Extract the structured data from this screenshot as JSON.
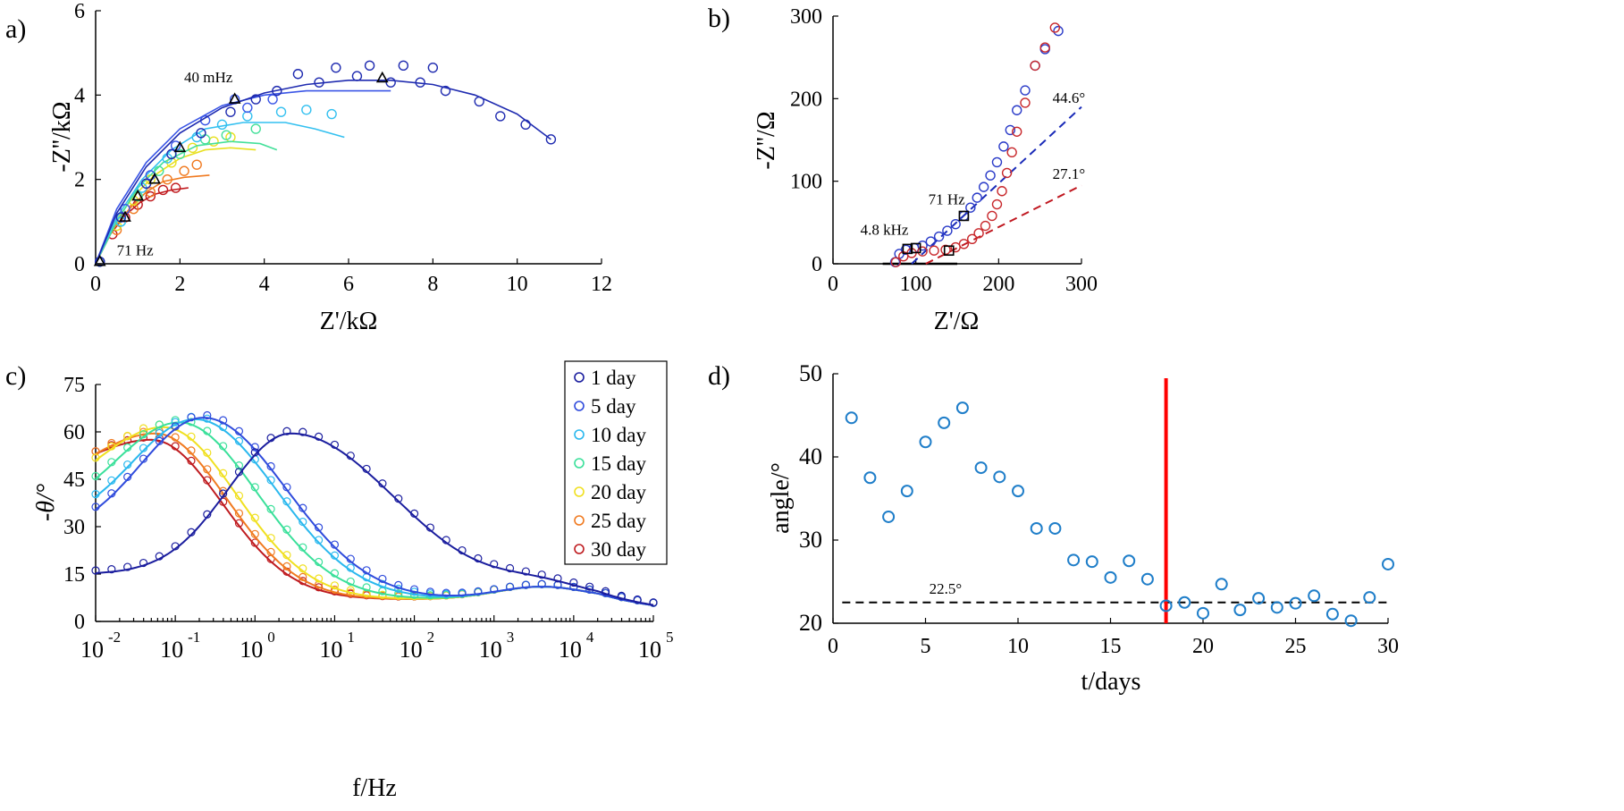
{
  "chart_data": [
    {
      "panel_label": "a)",
      "type": "scatter",
      "xlabel": "Z'/kΩ",
      "ylabel": "-Z''/kΩ",
      "xlim": [
        0,
        12
      ],
      "ylim": [
        0,
        6
      ],
      "xticks": [
        "0",
        "2",
        "4",
        "6",
        "8",
        "10",
        "12"
      ],
      "yticks": [
        "0",
        "2",
        "4",
        "6"
      ],
      "annotations": [
        {
          "text": "40 mHz",
          "x": 2.1,
          "y": 4.3
        },
        {
          "text": "71 Hz",
          "x": 0.5,
          "y": 0.2
        }
      ],
      "series": [
        {
          "color": "#1f2bb0",
          "points": [
            [
              0.1,
              0.05
            ],
            [
              0.6,
              1.1
            ],
            [
              1.2,
              1.9
            ],
            [
              1.8,
              2.6
            ],
            [
              2.5,
              3.1
            ],
            [
              3.2,
              3.6
            ],
            [
              3.8,
              3.9
            ],
            [
              4.3,
              4.1
            ],
            [
              4.8,
              4.5
            ],
            [
              5.3,
              4.3
            ],
            [
              5.7,
              4.65
            ],
            [
              6.2,
              4.45
            ],
            [
              6.5,
              4.7
            ],
            [
              7.0,
              4.3
            ],
            [
              7.3,
              4.7
            ],
            [
              7.7,
              4.3
            ],
            [
              8.0,
              4.65
            ],
            [
              8.3,
              4.1
            ],
            [
              9.1,
              3.85
            ],
            [
              9.6,
              3.5
            ],
            [
              10.2,
              3.3
            ],
            [
              10.8,
              2.95
            ]
          ],
          "fit": [
            [
              0,
              0
            ],
            [
              0.5,
              1.2
            ],
            [
              1.2,
              2.3
            ],
            [
              2.0,
              3.1
            ],
            [
              3.0,
              3.7
            ],
            [
              4.0,
              4.05
            ],
            [
              5.0,
              4.25
            ],
            [
              6.0,
              4.35
            ],
            [
              7.0,
              4.35
            ],
            [
              8.0,
              4.25
            ],
            [
              9.0,
              4.0
            ],
            [
              10.0,
              3.55
            ],
            [
              10.8,
              2.95
            ]
          ]
        },
        {
          "color": "#3a55e6",
          "points": [
            [
              0.1,
              0.05
            ],
            [
              0.7,
              1.3
            ],
            [
              1.3,
              2.1
            ],
            [
              1.9,
              2.8
            ],
            [
              2.6,
              3.4
            ],
            [
              3.3,
              3.9
            ],
            [
              3.6,
              3.7
            ],
            [
              4.2,
              3.9
            ]
          ],
          "fit": [
            [
              0,
              0
            ],
            [
              0.5,
              1.3
            ],
            [
              1.2,
              2.4
            ],
            [
              2.0,
              3.2
            ],
            [
              3.0,
              3.75
            ],
            [
              4.0,
              4.0
            ],
            [
              5.0,
              4.1
            ],
            [
              6.0,
              4.1
            ],
            [
              7.0,
              4.1
            ]
          ]
        },
        {
          "color": "#33c0f0",
          "points": [
            [
              0.1,
              0.05
            ],
            [
              0.6,
              1.0
            ],
            [
              1.1,
              1.8
            ],
            [
              1.7,
              2.5
            ],
            [
              2.4,
              3.0
            ],
            [
              3.0,
              3.3
            ],
            [
              3.6,
              3.5
            ],
            [
              4.4,
              3.6
            ],
            [
              5.0,
              3.65
            ],
            [
              5.6,
              3.55
            ]
          ],
          "fit": [
            [
              0,
              0
            ],
            [
              0.5,
              1.1
            ],
            [
              1.1,
              2.0
            ],
            [
              1.8,
              2.7
            ],
            [
              2.6,
              3.2
            ],
            [
              3.5,
              3.35
            ],
            [
              4.5,
              3.35
            ],
            [
              5.2,
              3.2
            ],
            [
              5.9,
              3.0
            ]
          ]
        },
        {
          "color": "#44e09a",
          "points": [
            [
              0.1,
              0.05
            ],
            [
              0.6,
              1.0
            ],
            [
              1.0,
              1.6
            ],
            [
              1.5,
              2.2
            ],
            [
              2.0,
              2.6
            ],
            [
              2.6,
              2.95
            ],
            [
              3.1,
              3.05
            ],
            [
              3.8,
              3.2
            ]
          ],
          "fit": [
            [
              0,
              0
            ],
            [
              0.5,
              1.0
            ],
            [
              1.0,
              1.8
            ],
            [
              1.6,
              2.4
            ],
            [
              2.4,
              2.8
            ],
            [
              3.2,
              2.9
            ],
            [
              3.9,
              2.85
            ],
            [
              4.3,
              2.7
            ]
          ]
        },
        {
          "color": "#e8e020",
          "points": [
            [
              0.1,
              0.05
            ],
            [
              0.5,
              0.9
            ],
            [
              0.9,
              1.5
            ],
            [
              1.3,
              2.0
            ],
            [
              1.8,
              2.4
            ],
            [
              2.3,
              2.75
            ],
            [
              2.8,
              2.9
            ],
            [
              3.2,
              3.0
            ]
          ],
          "fit": [
            [
              0,
              0
            ],
            [
              0.4,
              0.9
            ],
            [
              0.9,
              1.6
            ],
            [
              1.4,
              2.1
            ],
            [
              2.0,
              2.5
            ],
            [
              2.6,
              2.7
            ],
            [
              3.2,
              2.75
            ],
            [
              3.8,
              2.7
            ]
          ]
        },
        {
          "color": "#f07a20",
          "points": [
            [
              0.1,
              0.05
            ],
            [
              0.5,
              0.8
            ],
            [
              0.9,
              1.3
            ],
            [
              1.3,
              1.7
            ],
            [
              1.7,
              2.0
            ],
            [
              2.1,
              2.2
            ],
            [
              2.4,
              2.35
            ]
          ],
          "fit": [
            [
              0,
              0
            ],
            [
              0.4,
              0.8
            ],
            [
              0.8,
              1.3
            ],
            [
              1.2,
              1.7
            ],
            [
              1.6,
              1.95
            ],
            [
              2.1,
              2.05
            ],
            [
              2.7,
              2.1
            ]
          ]
        },
        {
          "color": "#c0181c",
          "points": [
            [
              0.1,
              0.05
            ],
            [
              0.4,
              0.7
            ],
            [
              0.7,
              1.1
            ],
            [
              1.0,
              1.4
            ],
            [
              1.3,
              1.6
            ],
            [
              1.6,
              1.75
            ],
            [
              1.9,
              1.8
            ]
          ],
          "fit": [
            [
              0,
              0
            ],
            [
              0.35,
              0.7
            ],
            [
              0.7,
              1.15
            ],
            [
              1.05,
              1.45
            ],
            [
              1.4,
              1.65
            ],
            [
              1.8,
              1.75
            ],
            [
              2.2,
              1.8
            ]
          ]
        }
      ],
      "markers_triangle": [
        [
          0.1,
          0.05
        ],
        [
          0.7,
          1.1
        ],
        [
          1.0,
          1.6
        ],
        [
          1.4,
          2.0
        ],
        [
          2.0,
          2.75
        ],
        [
          3.3,
          3.9
        ],
        [
          6.8,
          4.4
        ]
      ]
    },
    {
      "panel_label": "b)",
      "type": "scatter",
      "xlabel": "Z'/Ω",
      "ylabel": "-Z''/Ω",
      "xlim": [
        0,
        300
      ],
      "ylim": [
        0,
        300
      ],
      "xticks": [
        "0",
        "100",
        "200",
        "300"
      ],
      "yticks": [
        "0",
        "100",
        "200",
        "300"
      ],
      "annotations": [
        {
          "text": "44.6°",
          "x": 265,
          "y": 195
        },
        {
          "text": "27.1°",
          "x": 265,
          "y": 103
        },
        {
          "text": "71 Hz",
          "x": 115,
          "y": 72
        },
        {
          "text": "4.8 kHz",
          "x": 33,
          "y": 35
        }
      ],
      "series": [
        {
          "color": "#2a3bc8",
          "points": [
            [
              75,
              2
            ],
            [
              80,
              12
            ],
            [
              88,
              17
            ],
            [
              98,
              19
            ],
            [
              108,
              22
            ],
            [
              118,
              27
            ],
            [
              128,
              33
            ],
            [
              138,
              40
            ],
            [
              148,
              48
            ],
            [
              158,
              58
            ],
            [
              166,
              68
            ],
            [
              174,
              80
            ],
            [
              182,
              93
            ],
            [
              190,
              107
            ],
            [
              198,
              123
            ],
            [
              206,
              142
            ],
            [
              214,
              162
            ],
            [
              222,
              186
            ],
            [
              232,
              210
            ],
            [
              244,
              240
            ],
            [
              256,
              260
            ],
            [
              272,
              282
            ]
          ]
        },
        {
          "color": "#c8282c",
          "points": [
            [
              76,
              2
            ],
            [
              85,
              9
            ],
            [
              95,
              13
            ],
            [
              108,
              15
            ],
            [
              122,
              16
            ],
            [
              136,
              17
            ],
            [
              148,
              20
            ],
            [
              158,
              24
            ],
            [
              168,
              30
            ],
            [
              176,
              37
            ],
            [
              184,
              46
            ],
            [
              192,
              58
            ],
            [
              198,
              72
            ],
            [
              204,
              88
            ],
            [
              210,
              110
            ],
            [
              216,
              135
            ],
            [
              222,
              160
            ],
            [
              232,
              195
            ],
            [
              244,
              240
            ],
            [
              256,
              262
            ],
            [
              268,
              286
            ]
          ]
        }
      ],
      "fit_lines": [
        {
          "color": "#1a2bb8",
          "points": [
            [
              95,
              0
            ],
            [
              300,
              190
            ]
          ]
        },
        {
          "color": "#c01820",
          "points": [
            [
              112,
              0
            ],
            [
              300,
              95
            ]
          ]
        }
      ],
      "markers_square": [
        [
          90,
          18
        ],
        [
          100,
          19
        ],
        [
          158,
          58
        ],
        [
          140,
          16
        ]
      ]
    },
    {
      "panel_label": "c)",
      "type": "scatter",
      "xlabel": "f/Hz",
      "ylabel": "-θ/°",
      "xscale": "log",
      "xlim": [
        0.01,
        100000
      ],
      "ylim": [
        0,
        75
      ],
      "xticks_base": [
        "10",
        "10",
        "10",
        "10",
        "10",
        "10",
        "10",
        "10"
      ],
      "xticks_exp": [
        "-2",
        "-1",
        "0",
        "1",
        "2",
        "3",
        "4",
        "5"
      ],
      "yticks": [
        "0",
        "15",
        "30",
        "45",
        "60",
        "75"
      ],
      "legend_position": "top-right",
      "series": [
        {
          "name": "1 day",
          "color": "#1a1d9e",
          "peak_log": 0.45,
          "peak": 59.5,
          "low_val": 15
        },
        {
          "name": "5 day",
          "color": "#2f4bdc",
          "peak_log": -0.65,
          "peak": 64.5,
          "low_val": 27
        },
        {
          "name": "10 day",
          "color": "#2ab8ee",
          "peak_log": -0.75,
          "peak": 64.0,
          "low_val": 30
        },
        {
          "name": "15 day",
          "color": "#3ae09a",
          "peak_log": -0.95,
          "peak": 63.0,
          "low_val": 33
        },
        {
          "name": "20 day",
          "color": "#f0e020",
          "peak_log": -1.15,
          "peak": 61.5,
          "low_val": 38
        },
        {
          "name": "25 day",
          "color": "#f07a20",
          "peak_log": -1.25,
          "peak": 59.5,
          "low_val": 42
        },
        {
          "name": "30 day",
          "color": "#bf1b1f",
          "peak_log": -1.3,
          "peak": 57.5,
          "low_val": 44
        }
      ]
    },
    {
      "panel_label": "d)",
      "type": "scatter",
      "xlabel": "t/days",
      "ylabel": "angle/°",
      "xlim": [
        0,
        30
      ],
      "ylim": [
        20,
        50
      ],
      "xticks": [
        "0",
        "5",
        "10",
        "15",
        "20",
        "25",
        "30"
      ],
      "yticks": [
        "20",
        "30",
        "40",
        "50"
      ],
      "marker_color": "#1f7ec9",
      "reference_line": {
        "y": 22.5,
        "label": "22.5°"
      },
      "vertical_line": {
        "x": 18,
        "color": "#ff0000"
      },
      "x": [
        1,
        2,
        3,
        4,
        5,
        6,
        7,
        8,
        9,
        10,
        11,
        12,
        13,
        14,
        15,
        16,
        17,
        18,
        19,
        20,
        21,
        22,
        23,
        24,
        25,
        26,
        27,
        28,
        29,
        30
      ],
      "y": [
        44.7,
        37.5,
        32.8,
        35.9,
        41.8,
        44.1,
        45.9,
        38.7,
        37.6,
        35.9,
        31.4,
        31.4,
        27.6,
        27.4,
        25.5,
        27.5,
        25.3,
        22.1,
        22.5,
        21.2,
        24.7,
        21.6,
        23.0,
        21.9,
        22.4,
        23.3,
        21.1,
        20.3,
        23.1,
        27.1
      ]
    }
  ]
}
